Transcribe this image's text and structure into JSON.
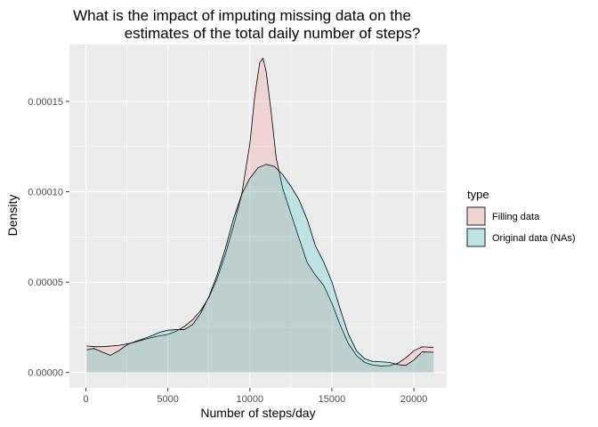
{
  "chart_data": {
    "type": "area",
    "title_lines": [
      "What is the impact of imputing missing data on the",
      "estimates of the total daily number of steps?"
    ],
    "xlabel": "Number of steps/day",
    "ylabel": "Density",
    "xlim": [
      -1000,
      22000
    ],
    "ylim": [
      -8.5e-06,
      0.0001815
    ],
    "x_ticks": [
      0,
      5000,
      10000,
      15000,
      20000
    ],
    "x_tick_labels": [
      "0",
      "5000",
      "10000",
      "15000",
      "20000"
    ],
    "y_ticks": [
      0,
      5e-05,
      0.0001,
      0.00015
    ],
    "y_tick_labels": [
      "0.00000",
      "0.00005",
      "0.00010",
      "0.00015"
    ],
    "legend": {
      "title": "type",
      "position": "right"
    },
    "series": [
      {
        "name": "Filling data",
        "color": "#f8766d",
        "x": [
          41,
          500,
          1000,
          1500,
          2000,
          2500,
          3000,
          3500,
          4000,
          4500,
          5000,
          5500,
          6000,
          6500,
          7000,
          7500,
          8000,
          8500,
          9000,
          9500,
          10000,
          10300,
          10600,
          10800,
          11000,
          11300,
          11600,
          12000,
          12500,
          13000,
          13500,
          14000,
          14500,
          15000,
          15500,
          16000,
          16500,
          17000,
          17500,
          18000,
          18500,
          19000,
          19500,
          20000,
          20500,
          21194
        ],
        "values": [
          1.47e-05,
          1.43e-05,
          1.43e-05,
          1.46e-05,
          1.5e-05,
          1.58e-05,
          1.68e-05,
          1.81e-05,
          1.93e-05,
          2.03e-05,
          2.11e-05,
          2.28e-05,
          2.54e-05,
          2.91e-05,
          3.42e-05,
          4.15e-05,
          5.18e-05,
          6.53e-05,
          8.08e-05,
          9.84e-05,
          0.0001265,
          0.000153,
          0.0001714,
          0.0001739,
          0.0001662,
          0.000144,
          0.000119,
          0.000102,
          8.8e-05,
          7.42e-05,
          6.07e-05,
          5.38e-05,
          4.82e-05,
          3.84e-05,
          2.64e-05,
          1.61e-05,
          9.4e-06,
          5.6e-06,
          4.1e-06,
          3.6e-06,
          3.8e-06,
          5e-06,
          8e-06,
          1.21e-05,
          1.42e-05,
          1.39e-05
        ]
      },
      {
        "name": "Original data (NAs)",
        "color": "#00bfc4",
        "x": [
          41,
          500,
          1000,
          1500,
          2000,
          2500,
          3000,
          3500,
          4000,
          4500,
          5000,
          5500,
          6000,
          6500,
          7000,
          7500,
          8000,
          8500,
          9000,
          9500,
          10000,
          10500,
          11000,
          11500,
          12000,
          12500,
          13000,
          13500,
          14000,
          14500,
          15000,
          15500,
          16000,
          16500,
          17000,
          17500,
          18000,
          18500,
          19000,
          19500,
          20000,
          20500,
          21194
        ],
        "values": [
          1.26e-05,
          1.33e-05,
          1.13e-05,
          9.5e-06,
          1.2e-05,
          1.53e-05,
          1.71e-05,
          1.86e-05,
          2.03e-05,
          2.22e-05,
          2.34e-05,
          2.37e-05,
          2.37e-05,
          2.64e-05,
          3.27e-05,
          4.19e-05,
          5.39e-05,
          6.84e-05,
          8.5e-05,
          9.85e-05,
          0.0001075,
          0.0001133,
          0.0001152,
          0.000114,
          0.0001095,
          0.000103,
          9.55e-05,
          8.45e-05,
          7e-05,
          6.12e-05,
          5.01e-05,
          3.53e-05,
          2.13e-05,
          1.2e-05,
          7.6e-06,
          6.1e-06,
          5.9e-06,
          5.6e-06,
          4.4e-06,
          3.9e-06,
          6.9e-06,
          1.14e-05,
          1.12e-05
        ]
      }
    ]
  },
  "colors": {
    "panel_bg": "#ebebeb",
    "grid": "#ffffff",
    "outline": "#000000"
  }
}
